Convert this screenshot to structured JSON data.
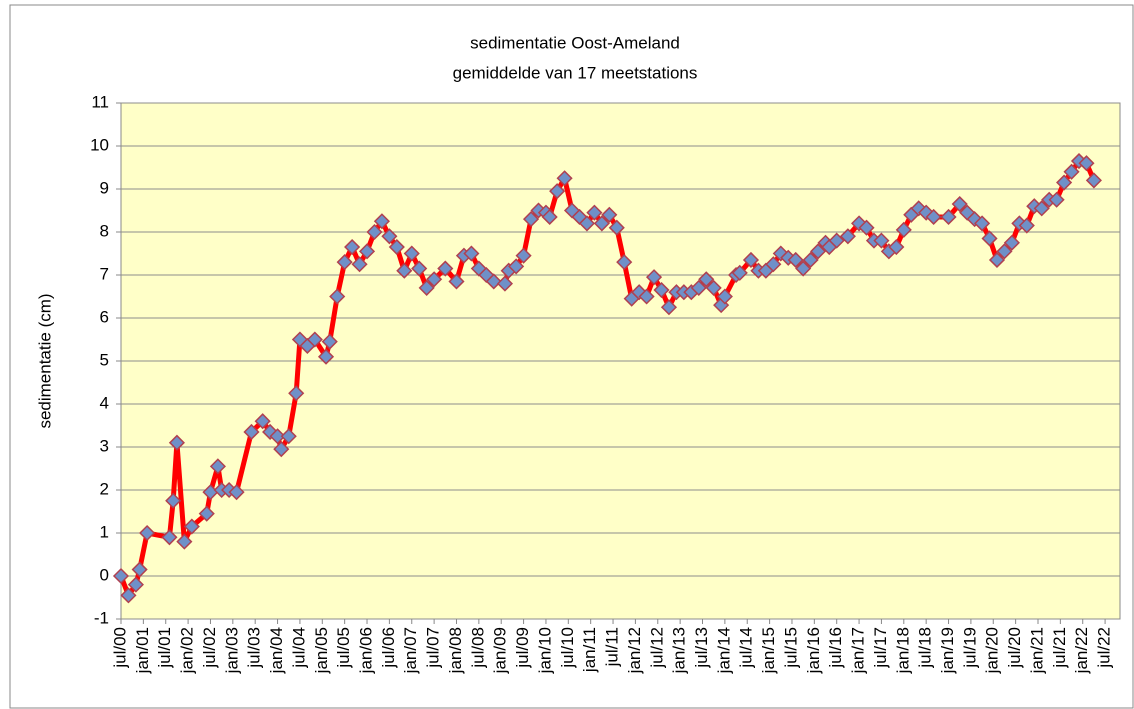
{
  "chart_data": {
    "type": "line",
    "title": "sedimentatie Oost-Ameland",
    "subtitle": "gemiddelde van 17 meetstations",
    "y_label": "sedimentatie (cm)",
    "color": "#ff0000",
    "marker_color": "#6f90c8",
    "background": "#ffffc8",
    "grid": true,
    "x": [
      "2000-07",
      "2000-09",
      "2000-11",
      "2000-12",
      "2001-02",
      "2001-08",
      "2001-09",
      "2001-10",
      "2001-12",
      "2002-02",
      "2002-06",
      "2002-07",
      "2002-09",
      "2002-10",
      "2002-12",
      "2003-02",
      "2003-06",
      "2003-09",
      "2003-11",
      "2004-01",
      "2004-02",
      "2004-04",
      "2004-06",
      "2004-07",
      "2004-09",
      "2004-11",
      "2005-02",
      "2005-03",
      "2005-05",
      "2005-07",
      "2005-09",
      "2005-11",
      "2006-01",
      "2006-03",
      "2006-05",
      "2006-07",
      "2006-09",
      "2006-11",
      "2007-01",
      "2007-03",
      "2007-05",
      "2007-07",
      "2007-10",
      "2008-01",
      "2008-03",
      "2008-05",
      "2008-07",
      "2008-09",
      "2008-11",
      "2009-02",
      "2009-03",
      "2009-05",
      "2009-07",
      "2009-09",
      "2009-11",
      "2010-01",
      "2010-02",
      "2010-04",
      "2010-06",
      "2010-08",
      "2010-10",
      "2010-12",
      "2011-02",
      "2011-04",
      "2011-06",
      "2011-08",
      "2011-10",
      "2011-12",
      "2012-02",
      "2012-04",
      "2012-06",
      "2012-08",
      "2012-10",
      "2012-12",
      "2013-02",
      "2013-04",
      "2013-06",
      "2013-08",
      "2013-10",
      "2013-12",
      "2014-01",
      "2014-04",
      "2014-05",
      "2014-08",
      "2014-10",
      "2014-12",
      "2015-02",
      "2015-04",
      "2015-06",
      "2015-08",
      "2015-10",
      "2015-12",
      "2016-02",
      "2016-04",
      "2016-05",
      "2016-07",
      "2016-10",
      "2017-01",
      "2017-03",
      "2017-05",
      "2017-07",
      "2017-09",
      "2017-11",
      "2018-01",
      "2018-03",
      "2018-05",
      "2018-07",
      "2018-09",
      "2019-01",
      "2019-04",
      "2019-06",
      "2019-08",
      "2019-10",
      "2019-12",
      "2020-02",
      "2020-04",
      "2020-06",
      "2020-08",
      "2020-10",
      "2020-12",
      "2021-02",
      "2021-04",
      "2021-06",
      "2021-08",
      "2021-10",
      "2021-12",
      "2022-02",
      "2022-04"
    ],
    "values": [
      0,
      -0.45,
      -0.2,
      0.15,
      1.0,
      0.9,
      1.75,
      3.1,
      0.8,
      1.15,
      1.45,
      1.95,
      2.55,
      2.0,
      2.0,
      1.95,
      3.35,
      3.6,
      3.35,
      3.25,
      2.95,
      3.25,
      4.25,
      5.5,
      5.35,
      5.5,
      5.1,
      5.45,
      6.5,
      7.3,
      7.65,
      7.25,
      7.55,
      8.0,
      8.25,
      7.9,
      7.65,
      7.1,
      7.5,
      7.15,
      6.7,
      6.9,
      7.15,
      6.85,
      7.45,
      7.5,
      7.15,
      7.0,
      6.85,
      6.8,
      7.1,
      7.2,
      7.45,
      8.3,
      8.5,
      8.45,
      8.35,
      8.95,
      9.25,
      8.5,
      8.35,
      8.2,
      8.45,
      8.2,
      8.4,
      8.1,
      7.3,
      6.45,
      6.6,
      6.5,
      6.95,
      6.65,
      6.25,
      6.6,
      6.6,
      6.6,
      6.7,
      6.9,
      6.7,
      6.3,
      6.5,
      7.0,
      7.05,
      7.35,
      7.1,
      7.1,
      7.25,
      7.5,
      7.4,
      7.35,
      7.15,
      7.35,
      7.55,
      7.75,
      7.65,
      7.8,
      7.9,
      8.2,
      8.1,
      7.8,
      7.8,
      7.55,
      7.65,
      8.05,
      8.4,
      8.55,
      8.45,
      8.35,
      8.35,
      8.65,
      8.45,
      8.3,
      8.2,
      7.85,
      7.35,
      7.55,
      7.75,
      8.2,
      8.15,
      8.6,
      8.55,
      8.75,
      8.75,
      9.15,
      9.4,
      9.65,
      9.6,
      9.2
    ],
    "xlim": [
      "2000-07",
      "2022-11"
    ],
    "xticks": [
      {
        "value": "2000-07",
        "label": "jul/00"
      },
      {
        "value": "2001-01",
        "label": "jan/01"
      },
      {
        "value": "2001-07",
        "label": "jul/01"
      },
      {
        "value": "2002-01",
        "label": "jan/02"
      },
      {
        "value": "2002-07",
        "label": "jul/02"
      },
      {
        "value": "2003-01",
        "label": "jan/03"
      },
      {
        "value": "2003-07",
        "label": "jul/03"
      },
      {
        "value": "2004-01",
        "label": "jan/04"
      },
      {
        "value": "2004-07",
        "label": "jul/04"
      },
      {
        "value": "2005-01",
        "label": "jan/05"
      },
      {
        "value": "2005-07",
        "label": "jul/05"
      },
      {
        "value": "2006-01",
        "label": "jan/06"
      },
      {
        "value": "2006-07",
        "label": "jul/06"
      },
      {
        "value": "2007-01",
        "label": "jan/07"
      },
      {
        "value": "2007-07",
        "label": "jul/07"
      },
      {
        "value": "2008-01",
        "label": "jan/08"
      },
      {
        "value": "2008-07",
        "label": "jul/08"
      },
      {
        "value": "2009-01",
        "label": "jan/09"
      },
      {
        "value": "2009-07",
        "label": "jul/09"
      },
      {
        "value": "2010-01",
        "label": "jan/10"
      },
      {
        "value": "2010-07",
        "label": "jul/10"
      },
      {
        "value": "2011-01",
        "label": "jan/11"
      },
      {
        "value": "2011-07",
        "label": "jul/11"
      },
      {
        "value": "2012-01",
        "label": "jan/12"
      },
      {
        "value": "2012-07",
        "label": "jul/12"
      },
      {
        "value": "2013-01",
        "label": "jan/13"
      },
      {
        "value": "2013-07",
        "label": "jul/13"
      },
      {
        "value": "2014-01",
        "label": "jan/14"
      },
      {
        "value": "2014-07",
        "label": "jul/14"
      },
      {
        "value": "2015-01",
        "label": "jan/15"
      },
      {
        "value": "2015-07",
        "label": "jul/15"
      },
      {
        "value": "2016-01",
        "label": "jan/16"
      },
      {
        "value": "2016-07",
        "label": "jul/16"
      },
      {
        "value": "2017-01",
        "label": "jan/17"
      },
      {
        "value": "2017-07",
        "label": "jul/17"
      },
      {
        "value": "2018-01",
        "label": "jan/18"
      },
      {
        "value": "2018-07",
        "label": "jul/18"
      },
      {
        "value": "2019-01",
        "label": "jan/19"
      },
      {
        "value": "2019-07",
        "label": "jul/19"
      },
      {
        "value": "2020-01",
        "label": "jan/20"
      },
      {
        "value": "2020-07",
        "label": "jul/20"
      },
      {
        "value": "2021-01",
        "label": "jan/21"
      },
      {
        "value": "2021-07",
        "label": "jul/21"
      },
      {
        "value": "2022-01",
        "label": "jan/22"
      },
      {
        "value": "2022-07",
        "label": "jul/22"
      }
    ],
    "ylim": [
      -1,
      11
    ],
    "yticks": [
      -1,
      0,
      1,
      2,
      3,
      4,
      5,
      6,
      7,
      8,
      9,
      10,
      11
    ]
  }
}
